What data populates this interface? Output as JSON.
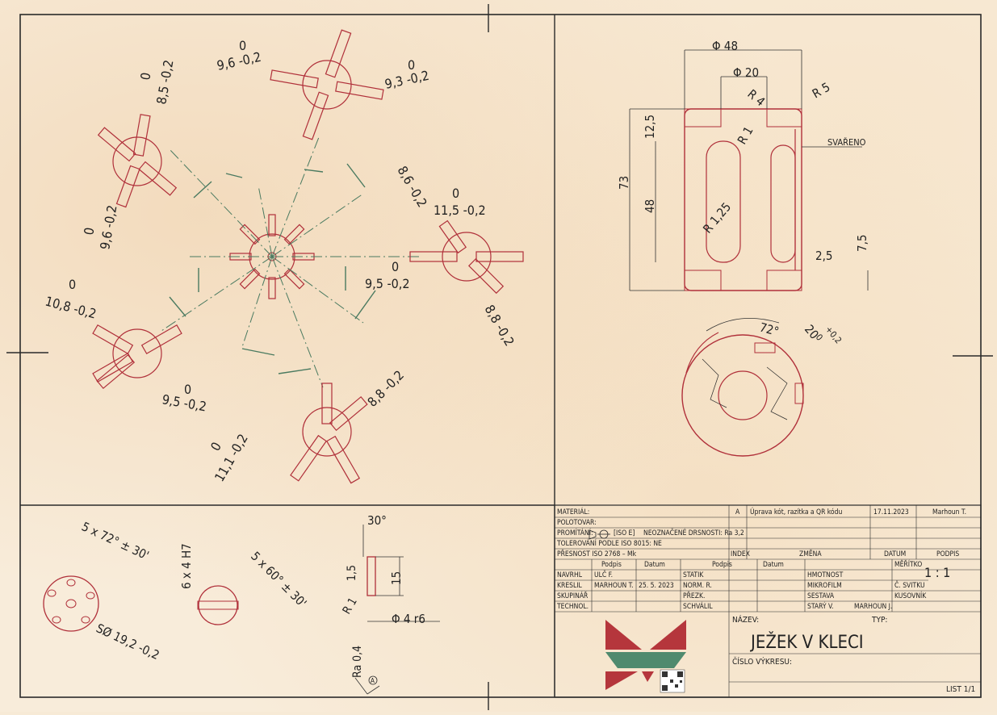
{
  "drawing": {
    "title": "JEŽEK V KLECI",
    "sheet": "LIST 1/1",
    "scale": "1 : 1"
  },
  "title_block": {
    "material_label": "MATERIÁL:",
    "stock_label": "POLOTOVAR:",
    "projection_label": "PROMÍTÁNÍ:",
    "projection_value": "[ISO E]",
    "roughness_label": "NEOZNAČENÉ DRSNOSTI: Ra 3,2",
    "tolerance_label": "TOLEROVÁNÍ PODLE ISO 8015: NE",
    "accuracy_label": "PŘESNOST ISO 2768 – Mk",
    "revision": {
      "index": "A",
      "description": "Úprava kót, razítka a QR kódu",
      "date": "17.11.2023",
      "signature": "Marhoun T."
    },
    "rev_headers": {
      "index": "INDEX",
      "change": "ZMĚNA",
      "date": "DATUM",
      "signature": "PODPIS"
    },
    "sig_headers": {
      "sign": "Podpis",
      "date": "Datum",
      "sign2": "Podpis",
      "date2": "Datum"
    },
    "rows_left": [
      {
        "role": "NAVRHL",
        "name": "ULČ F.",
        "date": ""
      },
      {
        "role": "KRESLIL",
        "name": "MARHOUN T.",
        "date": "25. 5. 2023"
      },
      {
        "role": "SKUPINÁŘ",
        "name": "",
        "date": ""
      },
      {
        "role": "TECHNOL.",
        "name": "",
        "date": ""
      }
    ],
    "rows_mid": [
      "STATIK",
      "NORM. R.",
      "PŘEZK.",
      "SCHVÁLIL"
    ],
    "rows_right": [
      "HMOTNOST",
      "MIKROFILM",
      "SESTAVA",
      "STARÝ V."
    ],
    "old_version_name": "MARHOUN J.",
    "scale_label": "MĚŘÍTKO",
    "roll_label": "Č. SVITKU",
    "pieces_label": "KUSOVNÍK",
    "name_label": "NÁZEV:",
    "type_label": "TYP:",
    "number_label": "ČÍSLO VÝKRESU:"
  },
  "dimensions": {
    "cage_outer_dia": "Φ 48",
    "cage_inner_dia": "Φ 20",
    "r4": "R 4",
    "r5": "R 5",
    "r1": "R 1",
    "welded": "SVAŘENO",
    "h125": "12,5",
    "h73": "73",
    "h48": "48",
    "r125": "R 1,25",
    "w25": "2,5",
    "h75": "7,5",
    "ang72": "72°",
    "slot20": "20",
    "slot_tol": "+0,2",
    "slot_tol2": "0",
    "hedgehog": [
      "9,6 -0,2",
      "9,3 -0,2",
      "8,5 -0,2",
      "9,6 -0,2",
      "8,6 -0,2",
      "11,5 -0,2",
      "9,5 -0,2",
      "8,8 -0,2",
      "10,8 -0,2",
      "9,5 -0,2",
      "8,8 -0,2",
      "11,1 -0,2"
    ],
    "zero": "0",
    "ang_5x72": "5 x 72° ± 30'",
    "ball_dia": "SØ 19,2 -0,2",
    "hole_6x4": "6 x 4 H7",
    "ang_5x60": "5 x 60° ± 30'",
    "pin_angle": "30°",
    "pin_len": "15",
    "pin_chamfer": "1,5",
    "pin_radius": "R 1",
    "pin_dia": "Φ 4 r6",
    "roughness": "Ra 0,4",
    "datum": "A"
  },
  "colors": {
    "section_red": "#b0303a",
    "centerline": "#4a7a60",
    "logo_red": "#b5363c",
    "logo_green": "#4f8a6e"
  }
}
